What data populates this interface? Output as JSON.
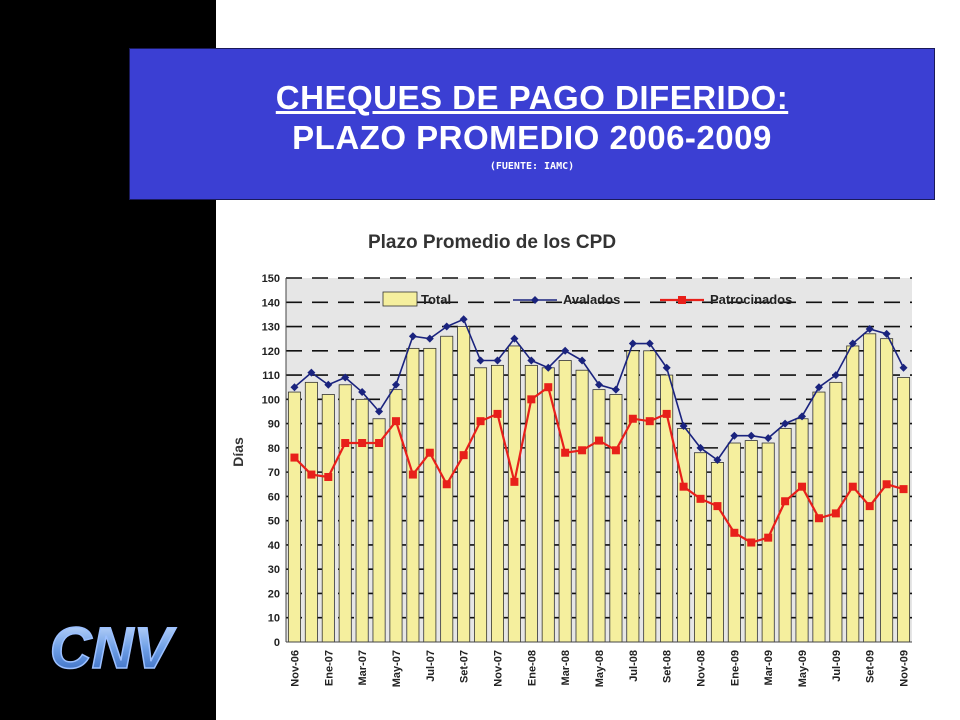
{
  "slide": {
    "title_line1": "CHEQUES DE PAGO DIFERIDO:",
    "title_line2": "PLAZO PROMEDIO 2006-2009",
    "source": "(FUENTE: IAMC)",
    "logo_text": "CNV"
  },
  "colors": {
    "left_bar": "#000000",
    "title_box": "#3b3fd3",
    "bar_fill": "#f5ef9e",
    "bar_stroke": "#333333",
    "avalados": "#1a237e",
    "patrocinados": "#e8201a",
    "plot_bg": "#e6e6e6"
  },
  "chart_data": {
    "type": "bar",
    "title": "Plazo Promedio de los CPD",
    "xlabel": "",
    "ylabel": "Días",
    "ylim": [
      0,
      150
    ],
    "yticks": [
      0,
      10,
      20,
      30,
      40,
      50,
      60,
      70,
      80,
      90,
      100,
      110,
      120,
      130,
      140,
      150
    ],
    "grid": "dashed horizontal",
    "legend_position": "top",
    "x_tick_labels": [
      "Nov-06",
      "Ene-07",
      "Mar-07",
      "May-07",
      "Jul-07",
      "Set-07",
      "Nov-07",
      "Ene-08",
      "Mar-08",
      "May-08",
      "Jul-08",
      "Set-08",
      "Nov-08",
      "Ene-09",
      "Mar-09",
      "May-09",
      "Jul-09",
      "Set-09",
      "Nov-09"
    ],
    "series": [
      {
        "name": "Total",
        "type": "bar",
        "values": [
          103,
          107,
          102,
          106,
          100,
          92,
          104,
          121,
          121,
          126,
          130,
          113,
          114,
          122,
          114,
          113,
          116,
          112,
          104,
          102,
          120,
          120,
          110,
          88,
          78,
          74,
          82,
          83,
          82,
          88,
          92,
          103,
          107,
          122,
          127,
          125,
          109
        ]
      },
      {
        "name": "Avalados",
        "type": "line",
        "values": [
          105,
          111,
          106,
          109,
          103,
          95,
          106,
          126,
          125,
          130,
          133,
          116,
          116,
          125,
          116,
          113,
          120,
          116,
          106,
          104,
          123,
          123,
          113,
          89,
          80,
          75,
          85,
          85,
          84,
          90,
          93,
          105,
          110,
          123,
          129,
          127,
          113
        ]
      },
      {
        "name": "Patrocinados",
        "type": "line",
        "values": [
          76,
          69,
          68,
          82,
          82,
          82,
          91,
          69,
          78,
          65,
          77,
          91,
          94,
          66,
          100,
          105,
          78,
          79,
          83,
          79,
          92,
          91,
          94,
          64,
          59,
          56,
          45,
          41,
          43,
          58,
          64,
          51,
          53,
          64,
          56,
          65,
          63
        ]
      }
    ]
  }
}
